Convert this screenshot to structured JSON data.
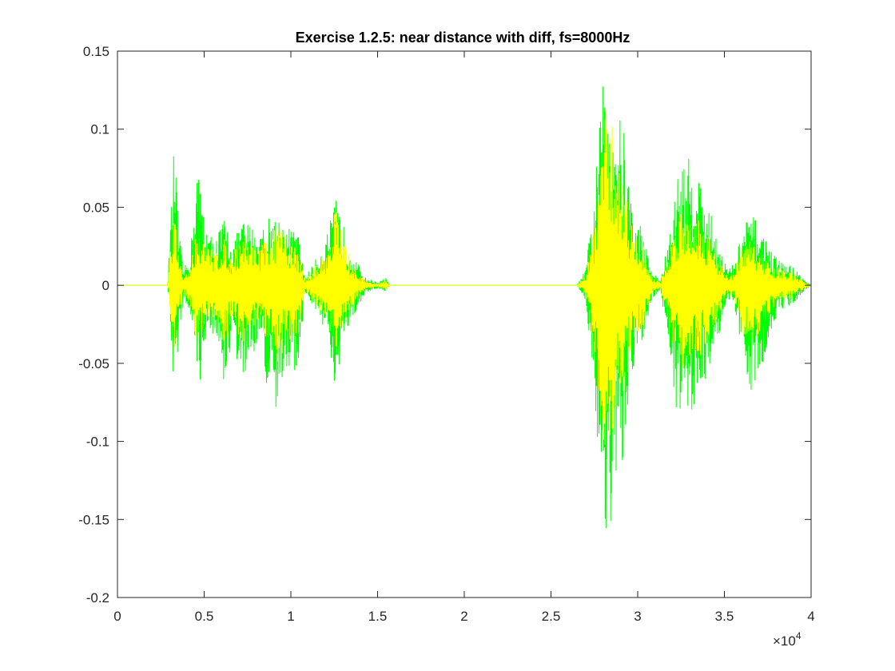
{
  "chart_data": {
    "type": "line",
    "title": "Exercise 1.2.5: near distance with diff, fs=8000Hz",
    "xlabel": "",
    "ylabel": "",
    "xlim": [
      0,
      40000
    ],
    "ylim": [
      -0.2,
      0.15
    ],
    "x_ticks": [
      0,
      5000,
      10000,
      15000,
      20000,
      25000,
      30000,
      35000,
      40000
    ],
    "x_tick_labels": [
      "0",
      "0.5",
      "1",
      "1.5",
      "2",
      "2.5",
      "3",
      "3.5",
      "4"
    ],
    "x_exponent_label": "×10",
    "x_exponent_power": "4",
    "y_ticks": [
      0.15,
      0.1,
      0.05,
      0,
      -0.05,
      -0.1,
      -0.15,
      -0.2
    ],
    "y_tick_labels": [
      "0.15",
      "0.1",
      "0.05",
      "0",
      "-0.05",
      "-0.1",
      "-0.15",
      "-0.2"
    ],
    "grid": false,
    "box": true,
    "series": [
      {
        "color": "#00ff00",
        "description": "waveform envelope (approximate)",
        "envelope_x": [
          0,
          2900,
          3100,
          3300,
          3500,
          3800,
          4200,
          4600,
          4800,
          5200,
          5600,
          6200,
          6600,
          7200,
          7600,
          8200,
          8800,
          9200,
          9800,
          10400,
          10800,
          11600,
          12000,
          12600,
          13000,
          13600,
          14300,
          15000,
          15500,
          15700,
          16000,
          26500,
          27000,
          27500,
          28000,
          28300,
          28700,
          29200,
          29800,
          30200,
          30800,
          31300,
          31800,
          32400,
          33000,
          33600,
          34500,
          35200,
          35600,
          36000,
          36500,
          37200,
          37800,
          38400,
          39000,
          39500,
          40000
        ],
        "envelope_max": [
          0,
          0,
          0.052,
          0.097,
          0.04,
          0.01,
          0.02,
          0.081,
          0.06,
          0.035,
          0.03,
          0.045,
          0.025,
          0.043,
          0.04,
          0.035,
          0.045,
          0.046,
          0.038,
          0.035,
          0.005,
          0.02,
          0.03,
          0.055,
          0.04,
          0.02,
          0.005,
          0.002,
          0.005,
          0,
          0,
          0,
          0.01,
          0.06,
          0.13,
          0.133,
          0.12,
          0.1,
          0.04,
          0.04,
          0.01,
          0.003,
          0.03,
          0.08,
          0.082,
          0.07,
          0.035,
          0.01,
          0.015,
          0.035,
          0.048,
          0.035,
          0.02,
          0.015,
          0.012,
          0.005,
          0
        ],
        "envelope_min": [
          0,
          0,
          -0.04,
          -0.09,
          -0.035,
          -0.01,
          -0.02,
          -0.068,
          -0.06,
          -0.035,
          -0.03,
          -0.068,
          -0.035,
          -0.066,
          -0.05,
          -0.035,
          -0.08,
          -0.09,
          -0.05,
          -0.06,
          -0.005,
          -0.02,
          -0.03,
          -0.077,
          -0.04,
          -0.02,
          -0.005,
          -0.002,
          -0.004,
          0,
          0,
          0,
          -0.01,
          -0.07,
          -0.155,
          -0.172,
          -0.14,
          -0.12,
          -0.05,
          -0.04,
          -0.01,
          -0.003,
          -0.04,
          -0.095,
          -0.085,
          -0.07,
          -0.04,
          -0.01,
          -0.015,
          -0.05,
          -0.068,
          -0.05,
          -0.025,
          -0.015,
          -0.012,
          -0.005,
          0
        ]
      },
      {
        "color": "#ffff00",
        "description": "diff waveform envelope (approximate)",
        "envelope_x": [
          0,
          2900,
          3100,
          3300,
          3500,
          3800,
          4200,
          4600,
          4800,
          5200,
          5600,
          6200,
          6600,
          7200,
          7600,
          8200,
          8800,
          9200,
          9800,
          10400,
          10800,
          11600,
          12000,
          12600,
          13000,
          13600,
          14300,
          15000,
          15500,
          15700,
          16000,
          26500,
          27000,
          27500,
          28000,
          28300,
          28700,
          29200,
          29800,
          30200,
          30800,
          31300,
          31800,
          32400,
          33000,
          33600,
          34500,
          35200,
          35600,
          36000,
          36500,
          37200,
          37800,
          38400,
          39000,
          39500,
          40000
        ],
        "envelope_max": [
          0,
          0,
          0.03,
          0.05,
          0.02,
          0.005,
          0.012,
          0.04,
          0.035,
          0.025,
          0.022,
          0.03,
          0.018,
          0.035,
          0.03,
          0.025,
          0.032,
          0.04,
          0.03,
          0.025,
          0.003,
          0.015,
          0.02,
          0.052,
          0.03,
          0.012,
          0.003,
          0.001,
          0.003,
          0,
          0,
          0,
          0.006,
          0.04,
          0.1,
          0.12,
          0.09,
          0.07,
          0.03,
          0.03,
          0.006,
          0.002,
          0.02,
          0.05,
          0.05,
          0.045,
          0.022,
          0.006,
          0.01,
          0.025,
          0.03,
          0.02,
          0.012,
          0.01,
          0.008,
          0.003,
          0
        ],
        "envelope_min": [
          0,
          0,
          -0.025,
          -0.045,
          -0.02,
          -0.005,
          -0.012,
          -0.04,
          -0.035,
          -0.025,
          -0.022,
          -0.04,
          -0.022,
          -0.04,
          -0.03,
          -0.025,
          -0.04,
          -0.055,
          -0.035,
          -0.035,
          -0.003,
          -0.015,
          -0.02,
          -0.045,
          -0.03,
          -0.012,
          -0.003,
          -0.001,
          -0.003,
          0,
          0,
          0,
          -0.006,
          -0.04,
          -0.1,
          -0.11,
          -0.09,
          -0.07,
          -0.035,
          -0.03,
          -0.006,
          -0.002,
          -0.025,
          -0.055,
          -0.05,
          -0.045,
          -0.025,
          -0.006,
          -0.01,
          -0.03,
          -0.04,
          -0.03,
          -0.015,
          -0.01,
          -0.008,
          -0.003,
          0
        ]
      }
    ]
  }
}
